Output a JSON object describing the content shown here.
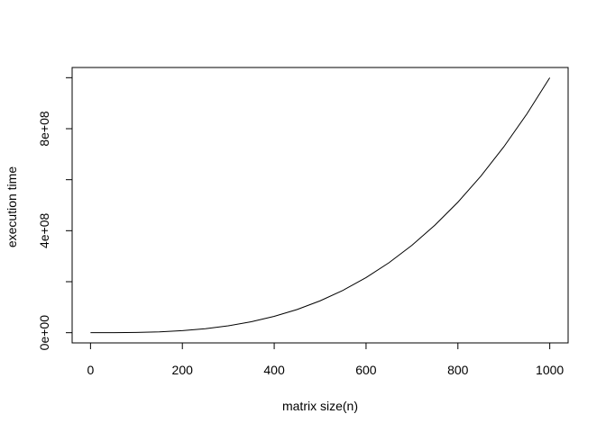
{
  "chart_data": {
    "type": "line",
    "title": "",
    "xlabel": "matrix size(n)",
    "ylabel": "execution time",
    "xlim": [
      -40,
      1040
    ],
    "ylim": [
      -40000000,
      1040000000
    ],
    "x_ticks": [
      0,
      200,
      400,
      600,
      800,
      1000
    ],
    "x_tick_labels": [
      "0",
      "200",
      "400",
      "600",
      "800",
      "1000"
    ],
    "y_ticks": [
      0,
      200000000,
      400000000,
      600000000,
      800000000,
      1000000000
    ],
    "y_tick_labels": [
      "0e+00",
      "",
      "4e+08",
      "",
      "8e+08",
      ""
    ],
    "grid": false,
    "legend": "none",
    "series": [
      {
        "x": [
          0,
          50,
          100,
          150,
          200,
          250,
          300,
          350,
          400,
          450,
          500,
          550,
          600,
          650,
          700,
          750,
          800,
          850,
          900,
          950,
          1000
        ],
        "y": [
          0,
          125000,
          1000000,
          3375000,
          8000000,
          15625000,
          27000000,
          42875000,
          64000000,
          91125000,
          125000000,
          166375000,
          216000000,
          274625000,
          343000000,
          421875000,
          512000000,
          614125000,
          729000000,
          857375000,
          1000000000
        ]
      }
    ],
    "line_color": "#000000"
  }
}
